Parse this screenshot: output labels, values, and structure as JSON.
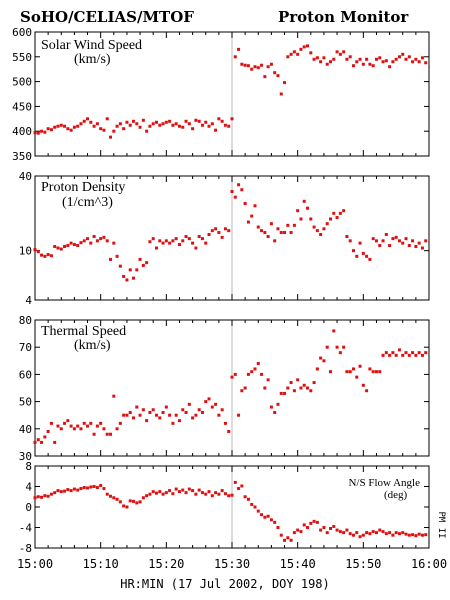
{
  "header": {
    "instrument": "SoHO/CELIAS/MTOF",
    "product": "Proton Monitor"
  },
  "x_axis": {
    "ticks": [
      "15:00",
      "15:10",
      "15:20",
      "15:30",
      "15:40",
      "15:50",
      "16:00"
    ],
    "label": "HR:MIN (17 Jul 2002, DOY 198)"
  },
  "side_note": "PM II",
  "colors": {
    "points": "#dd1111",
    "marker_line": "#bbbbbb"
  },
  "chart_data": [
    {
      "type": "scatter",
      "title": "Solar Wind Speed",
      "units": "(km/s)",
      "xlim": [
        0,
        60
      ],
      "ylim": [
        350,
        600
      ],
      "yticks": [
        350,
        400,
        450,
        500,
        550,
        600
      ],
      "marker_x": 30,
      "x": [
        0,
        0.5,
        1,
        1.5,
        2,
        2.5,
        3,
        3.5,
        4,
        4.5,
        5,
        5.5,
        6,
        6.5,
        7,
        7.5,
        8,
        8.5,
        9,
        9.5,
        10,
        10.5,
        11,
        11.5,
        12,
        12.5,
        13,
        13.5,
        14,
        14.5,
        15,
        15.5,
        16,
        16.5,
        17,
        17.5,
        18,
        18.5,
        19,
        19.5,
        20,
        20.5,
        21,
        21.5,
        22,
        22.5,
        23,
        23.5,
        24,
        24.5,
        25,
        25.5,
        26,
        26.5,
        27,
        27.5,
        28,
        28.5,
        29,
        29.5,
        30,
        30.5,
        31,
        31.5,
        32,
        32.5,
        33,
        33.5,
        34,
        34.5,
        35,
        35.5,
        36,
        36.5,
        37,
        37.5,
        38,
        38.5,
        39,
        39.5,
        40,
        40.5,
        41,
        41.5,
        42,
        42.5,
        43,
        43.5,
        44,
        44.5,
        45,
        45.5,
        46,
        46.5,
        47,
        47.5,
        48,
        48.5,
        49,
        49.5,
        50,
        50.5,
        51,
        51.5,
        52,
        52.5,
        53,
        53.5,
        54,
        54.5,
        55,
        55.5,
        56,
        56.5,
        57,
        57.5,
        58,
        58.5,
        59,
        59.5
      ],
      "y": [
        397,
        396,
        400,
        398,
        405,
        403,
        408,
        410,
        412,
        410,
        405,
        402,
        408,
        410,
        415,
        420,
        425,
        418,
        410,
        415,
        405,
        402,
        425,
        388,
        400,
        410,
        415,
        405,
        418,
        412,
        420,
        415,
        408,
        422,
        400,
        410,
        415,
        418,
        412,
        415,
        418,
        420,
        412,
        415,
        410,
        408,
        420,
        415,
        405,
        422,
        420,
        412,
        418,
        410,
        415,
        402,
        425,
        420,
        412,
        410,
        425,
        550,
        565,
        535,
        533,
        532,
        525,
        530,
        528,
        533,
        510,
        530,
        535,
        518,
        512,
        475,
        498,
        550,
        555,
        560,
        555,
        565,
        570,
        572,
        558,
        545,
        548,
        540,
        548,
        535,
        540,
        545,
        560,
        555,
        560,
        545,
        550,
        532,
        540,
        545,
        535,
        545,
        535,
        532,
        545,
        548,
        540,
        542,
        530,
        540,
        545,
        550,
        555,
        545,
        550,
        540,
        545,
        540,
        548,
        538
      ]
    },
    {
      "type": "scatter",
      "title": "Proton Density",
      "units": "(1/cm^3)",
      "xlim": [
        0,
        60
      ],
      "ylim": [
        4,
        40
      ],
      "scale": "log",
      "yticks": [
        4,
        10,
        40
      ],
      "marker_x": 30,
      "x": [
        0,
        0.5,
        1,
        1.5,
        2,
        2.5,
        3,
        3.5,
        4,
        4.5,
        5,
        5.5,
        6,
        6.5,
        7,
        7.5,
        8,
        8.5,
        9,
        9.5,
        10,
        10.5,
        11,
        11.5,
        12,
        12.5,
        13,
        13.5,
        14,
        14.5,
        15,
        15.5,
        16,
        16.5,
        17,
        17.5,
        18,
        18.5,
        19,
        19.5,
        20,
        20.5,
        21,
        21.5,
        22,
        22.5,
        23,
        23.5,
        24,
        24.5,
        25,
        25.5,
        26,
        26.5,
        27,
        27.5,
        28,
        28.5,
        29,
        29.5,
        30,
        30.5,
        31,
        31.5,
        32,
        32.5,
        33,
        33.5,
        34,
        34.5,
        35,
        35.5,
        36,
        36.5,
        37,
        37.5,
        38,
        38.5,
        39,
        39.5,
        40,
        40.5,
        41,
        41.5,
        42,
        42.5,
        43,
        43.5,
        44,
        44.5,
        45,
        45.5,
        46,
        46.5,
        47,
        47.5,
        48,
        48.5,
        49,
        49.5,
        50,
        50.5,
        51,
        51.5,
        52,
        52.5,
        53,
        53.5,
        54,
        54.5,
        55,
        55.5,
        56,
        56.5,
        57,
        57.5,
        58,
        58.5,
        59,
        59.5
      ],
      "y": [
        10.2,
        9.8,
        9.2,
        9.0,
        9.3,
        9.1,
        10.8,
        10.5,
        10.3,
        10.8,
        11.0,
        11.5,
        11.2,
        11.0,
        11.6,
        12.0,
        12.5,
        11.5,
        13.0,
        12.0,
        12.5,
        12.8,
        12.0,
        8.5,
        11.5,
        9.0,
        7.5,
        6.2,
        5.8,
        7.0,
        6.0,
        7.0,
        8.5,
        7.6,
        8.0,
        11.8,
        12.5,
        10.5,
        12.0,
        11.5,
        12.0,
        11.5,
        12.0,
        12.5,
        11.2,
        12.0,
        13.0,
        12.5,
        11.5,
        10.5,
        13.0,
        12.5,
        11.5,
        13.5,
        14.5,
        15.0,
        14.0,
        12.8,
        15.0,
        14.5,
        30.0,
        27.0,
        34.0,
        31.0,
        24.0,
        17.0,
        19.0,
        23.0,
        15.5,
        14.5,
        14.0,
        13.0,
        16.5,
        12.0,
        15.0,
        14.0,
        14.0,
        16.0,
        14.0,
        16.0,
        21.0,
        18.0,
        25.0,
        22.0,
        18.0,
        15.5,
        14.5,
        13.5,
        15.0,
        16.5,
        18.0,
        20.0,
        18.5,
        20.0,
        21.0,
        13.0,
        12.0,
        10.0,
        9.0,
        11.5,
        9.5,
        9.0,
        8.5,
        12.5,
        12.0,
        11.0,
        12.0,
        13.5,
        11.0,
        12.5,
        12.8,
        12.0,
        11.5,
        12.5,
        11.0,
        12.0,
        10.8,
        11.5,
        10.5,
        12.0
      ]
    },
    {
      "type": "scatter",
      "title": "Thermal Speed",
      "units": "(km/s)",
      "xlim": [
        0,
        60
      ],
      "ylim": [
        30,
        80
      ],
      "yticks": [
        30,
        40,
        50,
        60,
        70,
        80
      ],
      "marker_x": 30,
      "x": [
        0,
        0.5,
        1,
        1.5,
        2,
        2.5,
        3,
        3.5,
        4,
        4.5,
        5,
        5.5,
        6,
        6.5,
        7,
        7.5,
        8,
        8.5,
        9,
        9.5,
        10,
        10.5,
        11,
        11.5,
        12,
        12.5,
        13,
        13.5,
        14,
        14.5,
        15,
        15.5,
        16,
        16.5,
        17,
        17.5,
        18,
        18.5,
        19,
        19.5,
        20,
        20.5,
        21,
        21.5,
        22,
        22.5,
        23,
        23.5,
        24,
        24.5,
        25,
        25.5,
        26,
        26.5,
        27,
        27.5,
        28,
        28.5,
        29,
        29.5,
        30,
        30.5,
        31,
        31.5,
        32,
        32.5,
        33,
        33.5,
        34,
        34.5,
        35,
        35.5,
        36,
        36.5,
        37,
        37.5,
        38,
        38.5,
        39,
        39.5,
        40,
        40.5,
        41,
        41.5,
        42,
        42.5,
        43,
        43.5,
        44,
        44.5,
        45,
        45.5,
        46,
        46.5,
        47,
        47.5,
        48,
        48.5,
        49,
        49.5,
        50,
        50.5,
        51,
        51.5,
        52,
        52.5,
        53,
        53.5,
        54,
        54.5,
        55,
        55.5,
        56,
        56.5,
        57,
        57.5,
        58,
        58.5,
        59,
        59.5
      ],
      "y": [
        35,
        36,
        35,
        37,
        39,
        42,
        35,
        41,
        40,
        42,
        43,
        41,
        40,
        41,
        40,
        42,
        41,
        42,
        38,
        41,
        42,
        40,
        38,
        38,
        52,
        40,
        42,
        45,
        45,
        46,
        44,
        48,
        45,
        47,
        43,
        46,
        47,
        45,
        44,
        46,
        48,
        45,
        42,
        45,
        43,
        47,
        46,
        49,
        44,
        45,
        47,
        46,
        50,
        51,
        48,
        49,
        45,
        47,
        42,
        39,
        59,
        60,
        45,
        54,
        55,
        60,
        61,
        62,
        64,
        60,
        55,
        58,
        48,
        46,
        49,
        53,
        53,
        55,
        57,
        54,
        58,
        55,
        56,
        55,
        54,
        57,
        62,
        66,
        65,
        70,
        61,
        76,
        70,
        68,
        70,
        61,
        61,
        62,
        59,
        63,
        56,
        54,
        62,
        61,
        61,
        61,
        67,
        68,
        67,
        68,
        67,
        69,
        67,
        68,
        67,
        68,
        67,
        68,
        67,
        68
      ]
    },
    {
      "type": "scatter",
      "title": "N/S Flow Angle",
      "units": "(deg)",
      "xlim": [
        0,
        60
      ],
      "ylim": [
        -8,
        8
      ],
      "yticks": [
        -8,
        -4,
        0,
        4,
        8
      ],
      "marker_x": 30,
      "x": [
        0,
        0.5,
        1,
        1.5,
        2,
        2.5,
        3,
        3.5,
        4,
        4.5,
        5,
        5.5,
        6,
        6.5,
        7,
        7.5,
        8,
        8.5,
        9,
        9.5,
        10,
        10.5,
        11,
        11.5,
        12,
        12.5,
        13,
        13.5,
        14,
        14.5,
        15,
        15.5,
        16,
        16.5,
        17,
        17.5,
        18,
        18.5,
        19,
        19.5,
        20,
        20.5,
        21,
        21.5,
        22,
        22.5,
        23,
        23.5,
        24,
        24.5,
        25,
        25.5,
        26,
        26.5,
        27,
        27.5,
        28,
        28.5,
        29,
        29.5,
        30,
        30.5,
        31,
        31.5,
        32,
        32.5,
        33,
        33.5,
        34,
        34.5,
        35,
        35.5,
        36,
        36.5,
        37,
        37.5,
        38,
        38.5,
        39,
        39.5,
        40,
        40.5,
        41,
        41.5,
        42,
        42.5,
        43,
        43.5,
        44,
        44.5,
        45,
        45.5,
        46,
        46.5,
        47,
        47.5,
        48,
        48.5,
        49,
        49.5,
        50,
        50.5,
        51,
        51.5,
        52,
        52.5,
        53,
        53.5,
        54,
        54.5,
        55,
        55.5,
        56,
        56.5,
        57,
        57.5,
        58,
        58.5,
        59,
        59.5
      ],
      "y": [
        1.8,
        2.0,
        1.9,
        2.2,
        2.1,
        2.5,
        2.8,
        3.2,
        3.0,
        3.1,
        3.4,
        3.2,
        3.5,
        3.3,
        3.6,
        3.8,
        3.7,
        3.9,
        4.0,
        3.8,
        4.2,
        3.6,
        2.5,
        2.1,
        1.8,
        1.5,
        1.0,
        0.2,
        0.0,
        1.2,
        1.1,
        0.8,
        1.0,
        1.8,
        2.2,
        2.5,
        3.0,
        2.7,
        3.0,
        2.5,
        2.8,
        3.2,
        2.6,
        3.5,
        3.0,
        3.3,
        2.8,
        3.5,
        3.2,
        2.5,
        3.3,
        2.8,
        2.5,
        3.0,
        2.2,
        2.8,
        2.5,
        3.2,
        2.6,
        2.2,
        2.3,
        4.8,
        3.6,
        4.1,
        2.0,
        1.5,
        0.5,
        0.0,
        -0.8,
        -1.5,
        -2.0,
        -1.8,
        -2.5,
        -3.0,
        -4.0,
        -5.5,
        -6.5,
        -6.0,
        -6.5,
        -5.0,
        -4.5,
        -4.8,
        -3.5,
        -4.0,
        -3.2,
        -2.8,
        -3.0,
        -4.5,
        -4.0,
        -5.0,
        -4.2,
        -3.8,
        -4.5,
        -4.8,
        -5.0,
        -4.5,
        -5.2,
        -5.5,
        -5.0,
        -5.8,
        -5.5,
        -5.0,
        -5.2,
        -4.8,
        -5.0,
        -4.5,
        -4.8,
        -5.2,
        -5.0,
        -5.5,
        -5.0,
        -5.2,
        -5.0,
        -5.3,
        -5.5,
        -5.4,
        -5.6,
        -5.3,
        -5.5,
        -5.4
      ]
    }
  ]
}
